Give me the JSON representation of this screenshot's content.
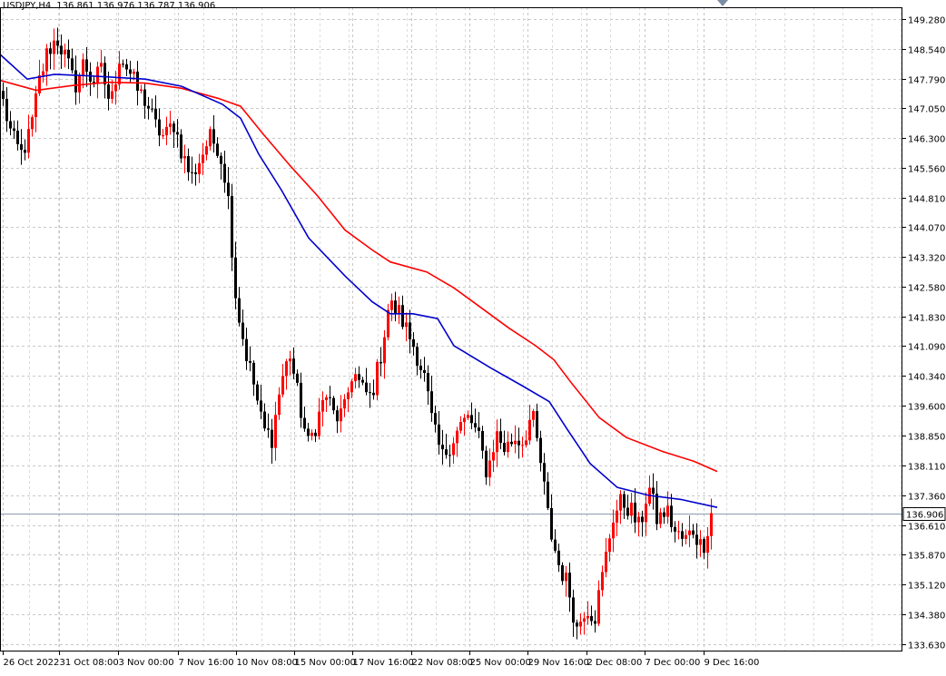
{
  "header": {
    "symbol": "USDJPY,H4",
    "ohlc": "136.861 136.976 136.787 136.906"
  },
  "price_label": "136.906",
  "chart_data": {
    "type": "candlestick",
    "title": "USDJPY,H4",
    "ylim": [
      133.44,
      149.58
    ],
    "y_ticks": [
      "149.280",
      "148.540",
      "147.790",
      "147.050",
      "146.300",
      "145.560",
      "144.810",
      "144.070",
      "143.320",
      "142.580",
      "141.830",
      "141.090",
      "140.340",
      "139.600",
      "138.850",
      "138.110",
      "137.360",
      "136.610",
      "135.870",
      "135.120",
      "134.380",
      "133.630"
    ],
    "x_ticks": [
      "26 Oct 2022",
      "31 Oct 08:00",
      "3 Nov 00:00",
      "7 Nov 16:00",
      "10 Nov 08:00",
      "15 Nov 00:00",
      "17 Nov 16:00",
      "22 Nov 08:00",
      "25 Nov 00:00",
      "29 Nov 16:00",
      "2 Dec 08:00",
      "7 Dec 00:00",
      "9 Dec 16:00"
    ],
    "current_price": 136.906,
    "grid": true,
    "colors": {
      "bull": "#ff0000",
      "bear": "#000000",
      "ma_fast": "#0000cc",
      "ma_slow": "#ff0000",
      "grid": "#c8c8c8",
      "price_line": "#8a9bb0"
    },
    "anchors": [
      147.2,
      146.3,
      145.9,
      146.4,
      147.7,
      148.5,
      148.8,
      148.3,
      147.6,
      148.2,
      147.7,
      148.0,
      147.1,
      148.4,
      148.0,
      147.5,
      147.2,
      146.6,
      146.3,
      146.7,
      145.9,
      145.3,
      145.8,
      146.3,
      146.1,
      145.1,
      142.2,
      141.0,
      140.1,
      139.0,
      138.8,
      140.2,
      140.9,
      139.7,
      138.6,
      139.2,
      139.9,
      139.3,
      139.4,
      140.5,
      140.0,
      139.8,
      140.7,
      142.1,
      142.0,
      141.5,
      141.0,
      140.3,
      139.0,
      138.3,
      138.7,
      139.1,
      139.3,
      138.8,
      137.9,
      138.9,
      138.5,
      138.8,
      138.7,
      139.4,
      138.1,
      136.5,
      135.6,
      135.1,
      134.0,
      134.6,
      134.3,
      135.5,
      136.8,
      137.2,
      137.0,
      136.5,
      137.6,
      136.7,
      137.0,
      136.4,
      136.2,
      136.5,
      136.0,
      136.9
    ],
    "ma_fast": [
      [
        0,
        148.4
      ],
      [
        30,
        147.78
      ],
      [
        60,
        147.9
      ],
      [
        100,
        147.86
      ],
      [
        160,
        147.78
      ],
      [
        200,
        147.6
      ],
      [
        245,
        147.15
      ],
      [
        265,
        146.8
      ],
      [
        285,
        145.9
      ],
      [
        310,
        145.0
      ],
      [
        340,
        143.8
      ],
      [
        380,
        142.85
      ],
      [
        410,
        142.2
      ],
      [
        430,
        141.9
      ],
      [
        455,
        141.9
      ],
      [
        482,
        141.78
      ],
      [
        500,
        141.1
      ],
      [
        540,
        140.55
      ],
      [
        575,
        140.1
      ],
      [
        605,
        139.7
      ],
      [
        625,
        139.0
      ],
      [
        650,
        138.15
      ],
      [
        680,
        137.55
      ],
      [
        715,
        137.35
      ],
      [
        750,
        137.25
      ],
      [
        790,
        137.05
      ]
    ],
    "ma_slow": [
      [
        0,
        147.75
      ],
      [
        40,
        147.5
      ],
      [
        80,
        147.62
      ],
      [
        120,
        147.7
      ],
      [
        160,
        147.68
      ],
      [
        200,
        147.55
      ],
      [
        240,
        147.3
      ],
      [
        265,
        147.1
      ],
      [
        290,
        146.4
      ],
      [
        320,
        145.6
      ],
      [
        350,
        144.85
      ],
      [
        380,
        144.0
      ],
      [
        410,
        143.5
      ],
      [
        430,
        143.2
      ],
      [
        470,
        142.95
      ],
      [
        500,
        142.55
      ],
      [
        530,
        142.05
      ],
      [
        560,
        141.55
      ],
      [
        590,
        141.1
      ],
      [
        610,
        140.75
      ],
      [
        630,
        140.15
      ],
      [
        660,
        139.3
      ],
      [
        690,
        138.8
      ],
      [
        730,
        138.45
      ],
      [
        765,
        138.2
      ],
      [
        790,
        137.95
      ]
    ]
  }
}
